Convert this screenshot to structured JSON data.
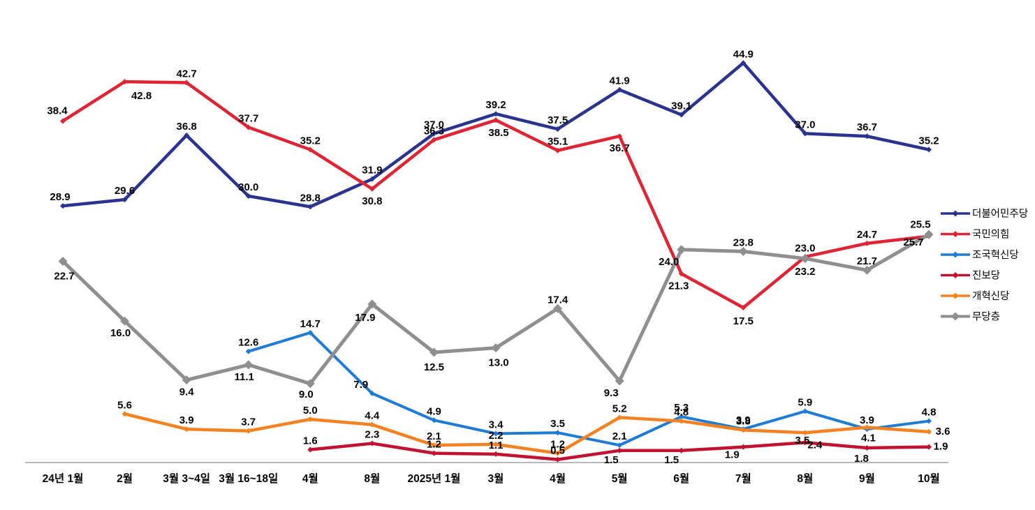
{
  "page": {
    "background": "#FFFFFF"
  },
  "chart_data": {
    "type": "line",
    "title": "",
    "xlabel": "",
    "ylabel": "",
    "ylim": [
      0,
      50
    ],
    "grid": false,
    "legend_position": "right",
    "marker": "diamond",
    "categories": [
      "24년 1월",
      "2월",
      "3월 3~4일",
      "3월 16~18일",
      "4월",
      "8월",
      "2025년 1월",
      "3월",
      "4월",
      "5월",
      "6월",
      "7월",
      "8월",
      "9월",
      "10월"
    ],
    "series": [
      {
        "name": "더불어민주당",
        "color": "#2A3490",
        "values": [
          28.9,
          29.6,
          36.8,
          30.0,
          28.8,
          31.9,
          37.0,
          39.2,
          37.5,
          41.9,
          39.1,
          44.9,
          37.0,
          36.7,
          35.2
        ],
        "labels": [
          "28.9",
          "29.6",
          "36.8",
          "30.0",
          "28.8",
          "31.9",
          "37.0",
          "39.2",
          "37.5",
          "41.9",
          "39.1",
          "44.9",
          "37.0",
          "36.7",
          "35.2"
        ]
      },
      {
        "name": "국민의힘",
        "color": "#E12433",
        "values": [
          38.4,
          42.8,
          42.7,
          37.7,
          35.2,
          30.8,
          36.3,
          38.5,
          35.1,
          36.7,
          21.3,
          17.5,
          23.2,
          24.7,
          25.5
        ],
        "labels": [
          "38.4",
          "42.8",
          "42.7",
          "37.7",
          "35.2",
          "30.8",
          "36.3",
          "38.5",
          "35.1",
          "36.7",
          "21.3",
          "17.5",
          "23.2",
          "24.7",
          "25.5"
        ]
      },
      {
        "name": "조국혁신당",
        "color": "#1E7CD6",
        "values": [
          null,
          null,
          null,
          12.6,
          14.7,
          7.9,
          4.9,
          3.4,
          3.5,
          2.1,
          5.3,
          3.9,
          5.9,
          3.9,
          4.8
        ],
        "labels": [
          null,
          null,
          null,
          "12.6",
          "14.7",
          "7.9",
          "4.9",
          "3.4",
          "3.5",
          "2.1",
          "5.3",
          "3.9",
          "5.9",
          "3.9",
          "4.8"
        ]
      },
      {
        "name": "진보당",
        "color": "#C31230",
        "values": [
          null,
          null,
          null,
          null,
          1.6,
          2.3,
          1.2,
          1.1,
          0.5,
          1.5,
          1.5,
          1.9,
          2.4,
          1.8,
          1.9
        ],
        "labels": [
          null,
          null,
          null,
          null,
          "1.6",
          "2.3",
          "1.2",
          "1.1",
          "0.5",
          "1.5",
          "1.5",
          "1.9",
          "2.4",
          "1.8",
          "1.9"
        ]
      },
      {
        "name": "개혁신당",
        "color": "#F58220",
        "values": [
          null,
          5.6,
          3.9,
          3.7,
          5.0,
          4.4,
          2.1,
          2.2,
          1.2,
          5.2,
          4.8,
          3.8,
          3.5,
          4.1,
          3.6
        ],
        "labels": [
          null,
          "5.6",
          "3.9",
          "3.7",
          "5.0",
          "4.4",
          "2.1",
          "2.2",
          "1.2",
          "5.2",
          "4.8",
          "3.8",
          "3.5",
          "4.1",
          "3.6"
        ]
      },
      {
        "name": "무당층",
        "color": "#8F8F8F",
        "values": [
          22.7,
          16.0,
          9.4,
          11.1,
          9.0,
          17.9,
          12.5,
          13.0,
          17.4,
          9.3,
          24.0,
          23.8,
          23.0,
          21.7,
          25.7
        ],
        "labels": [
          "22.7",
          "16.0",
          "9.4",
          "11.1",
          "9.0",
          "17.9",
          "12.5",
          "13.0",
          "17.4",
          "9.3",
          "24.0",
          "23.8",
          "23.0",
          "21.7",
          "25.7"
        ]
      }
    ]
  }
}
